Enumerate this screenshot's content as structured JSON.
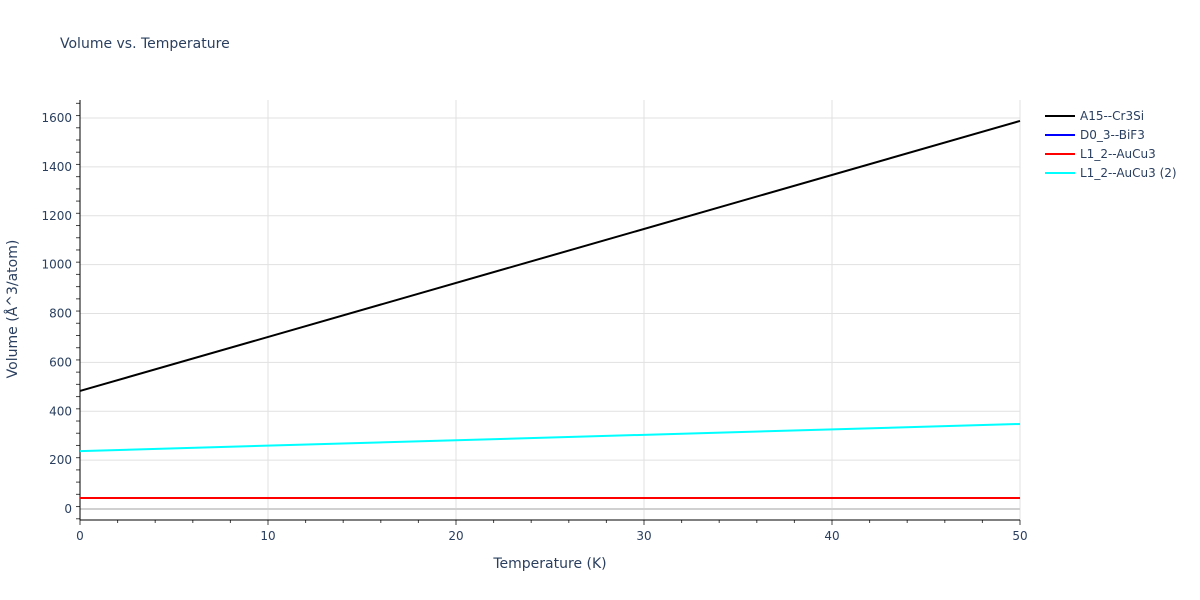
{
  "chart_data": {
    "type": "line",
    "title": "Volume vs. Temperature",
    "xlabel": "Temperature (K)",
    "ylabel": "Volume (Å^3/atom)",
    "xlim": [
      0,
      50
    ],
    "ylim": [
      -40,
      1680
    ],
    "x_ticks": [
      0,
      10,
      20,
      30,
      40,
      50
    ],
    "y_ticks": [
      0,
      200,
      400,
      600,
      800,
      1000,
      1200,
      1400,
      1600
    ],
    "grid": true,
    "legend_position": "right",
    "x": [
      0,
      50
    ],
    "series": [
      {
        "name": "A15--Cr3Si",
        "color": "#000000",
        "values": [
          483,
          1588
        ]
      },
      {
        "name": "D0_3--BiF3",
        "color": "#0000ff",
        "values": [
          45,
          45
        ]
      },
      {
        "name": "L1_2--AuCu3",
        "color": "#ff0000",
        "values": [
          45,
          45
        ]
      },
      {
        "name": "L1_2--AuCu3 (2)",
        "color": "#00ffff",
        "values": [
          237,
          348
        ]
      }
    ]
  }
}
